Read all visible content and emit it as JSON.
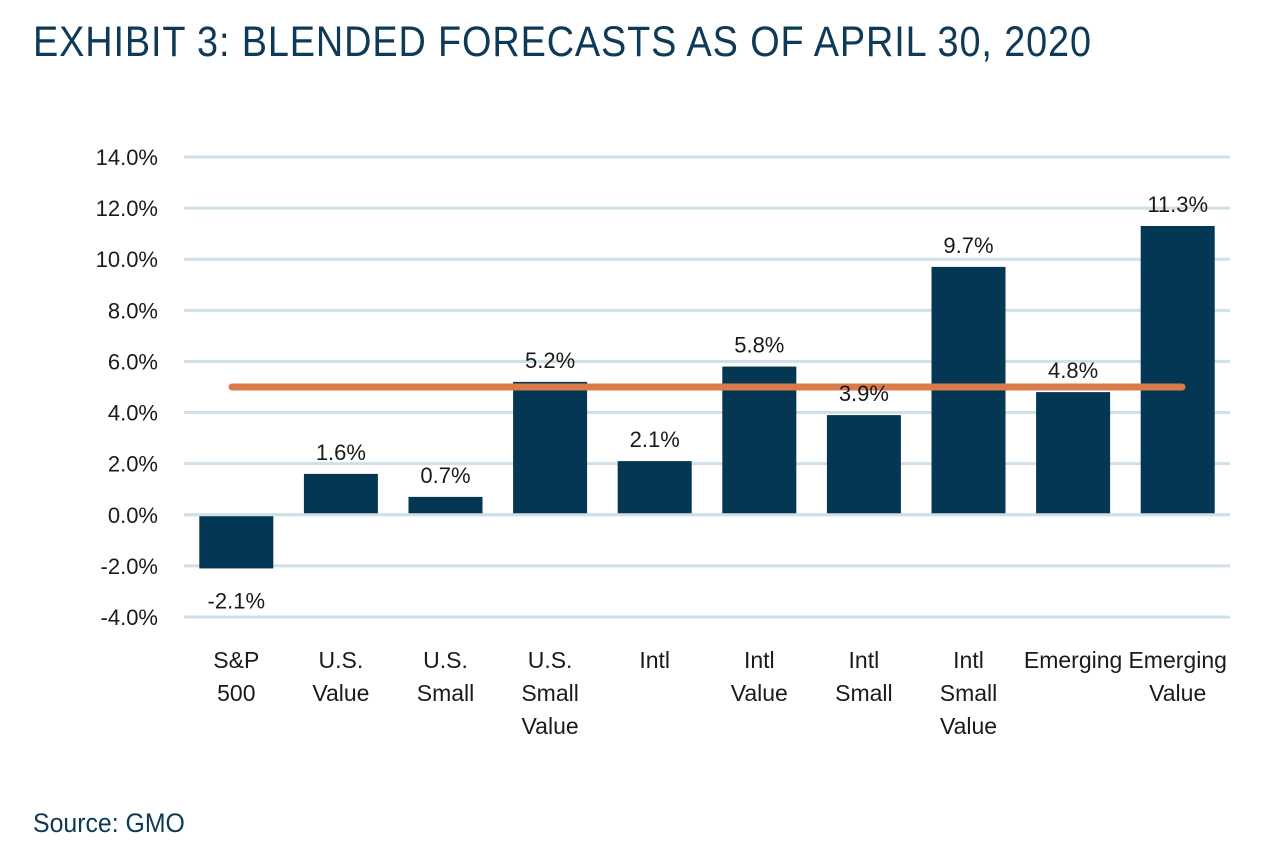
{
  "title": "EXHIBIT 3: BLENDED FORECASTS AS OF APRIL 30, 2020",
  "source": "Source: GMO",
  "colors": {
    "bar": "#033754",
    "reference_line": "#d97a4a",
    "grid": "#cfe0e8",
    "title": "#0e3a58"
  },
  "chart_data": {
    "type": "bar",
    "categories": [
      [
        "S&P",
        "500"
      ],
      [
        "U.S.",
        "Value"
      ],
      [
        "U.S.",
        "Small"
      ],
      [
        "U.S.",
        "Small",
        "Value"
      ],
      [
        "Intl"
      ],
      [
        "Intl",
        "Value"
      ],
      [
        "Intl",
        "Small"
      ],
      [
        "Intl",
        "Small",
        "Value"
      ],
      [
        "Emerging"
      ],
      [
        "Emerging",
        "Value"
      ]
    ],
    "values": [
      -2.1,
      1.6,
      0.7,
      5.2,
      2.1,
      5.8,
      3.9,
      9.7,
      4.8,
      11.3
    ],
    "data_labels": [
      "-2.1%",
      "1.6%",
      "0.7%",
      "5.2%",
      "2.1%",
      "5.8%",
      "3.9%",
      "9.7%",
      "4.8%",
      "11.3%"
    ],
    "reference_line": 5.0,
    "yticks": [
      14,
      12,
      10,
      8,
      6,
      4,
      2,
      0,
      -2,
      -4
    ],
    "ytick_labels": [
      "14.0%",
      "12.0%",
      "10.0%",
      "8.0%",
      "6.0%",
      "4.0%",
      "2.0%",
      "0.0%",
      "-2.0%",
      "-4.0%"
    ],
    "ylim": [
      -4,
      14
    ],
    "grid": true
  }
}
